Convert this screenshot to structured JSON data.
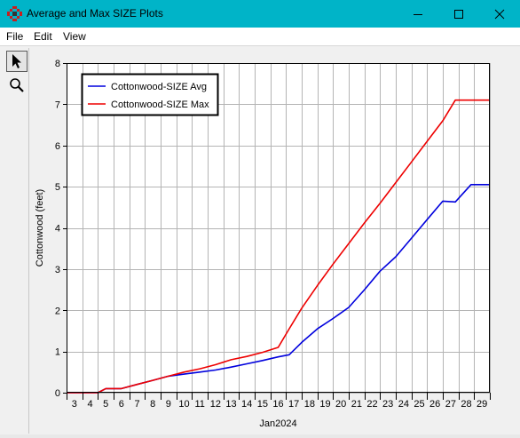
{
  "window": {
    "title": "Average and Max SIZE Plots",
    "accent_color": "#00b4c8",
    "icon": "app-logo-icon",
    "controls": [
      "minimize-icon",
      "maximize-icon",
      "close-icon"
    ]
  },
  "menu": {
    "file": "File",
    "edit": "Edit",
    "view": "View"
  },
  "tools": [
    {
      "icon": "pointer-icon",
      "active": true
    },
    {
      "icon": "magnifier-icon",
      "active": false
    }
  ],
  "chart_data": {
    "type": "line",
    "title": "",
    "xlabel": "Jan2024",
    "ylabel": "Cottonwood (feet)",
    "ylim": [
      0,
      8
    ],
    "yticks": [
      0,
      1,
      2,
      3,
      4,
      5,
      6,
      7,
      8
    ],
    "xlim": [
      2.5,
      29.5
    ],
    "xticks": [
      3,
      4,
      5,
      6,
      7,
      8,
      9,
      10,
      11,
      12,
      13,
      14,
      15,
      16,
      17,
      18,
      19,
      20,
      21,
      22,
      23,
      24,
      25,
      26,
      27,
      28,
      29
    ],
    "grid": true,
    "legend_position": "top-left",
    "series": [
      {
        "name": "Cottonwood-SIZE Avg",
        "color": "#0000dd",
        "x": [
          2.5,
          4.5,
          5.0,
          6.0,
          7.0,
          8.0,
          9.0,
          10.0,
          11.0,
          12.0,
          13.0,
          14.0,
          15.0,
          16.0,
          16.7,
          17.5,
          18.5,
          19.5,
          20.5,
          21.5,
          22.5,
          23.5,
          24.5,
          25.5,
          26.5,
          27.3,
          28.3,
          29.0,
          29.5
        ],
        "y": [
          0,
          0,
          0.1,
          0.1,
          0.2,
          0.3,
          0.4,
          0.45,
          0.5,
          0.55,
          0.62,
          0.7,
          0.78,
          0.87,
          0.92,
          1.22,
          1.55,
          1.8,
          2.07,
          2.5,
          2.95,
          3.3,
          3.75,
          4.2,
          4.65,
          4.63,
          5.05,
          5.05,
          5.05
        ]
      },
      {
        "name": "Cottonwood-SIZE Max",
        "color": "#ee0000",
        "x": [
          2.5,
          4.5,
          5.0,
          6.0,
          7.0,
          8.0,
          9.0,
          10.0,
          11.0,
          12.0,
          13.0,
          14.0,
          15.0,
          16.0,
          16.7,
          17.5,
          18.5,
          19.5,
          20.5,
          21.5,
          22.5,
          23.5,
          24.5,
          25.5,
          26.5,
          27.3,
          28.3,
          29.0,
          29.5
        ],
        "y": [
          0,
          0,
          0.1,
          0.1,
          0.2,
          0.3,
          0.4,
          0.5,
          0.58,
          0.68,
          0.8,
          0.88,
          0.98,
          1.1,
          1.55,
          2.05,
          2.6,
          3.12,
          3.62,
          4.12,
          4.6,
          5.1,
          5.6,
          6.1,
          6.6,
          7.1,
          7.1,
          7.1,
          7.1
        ]
      }
    ]
  }
}
